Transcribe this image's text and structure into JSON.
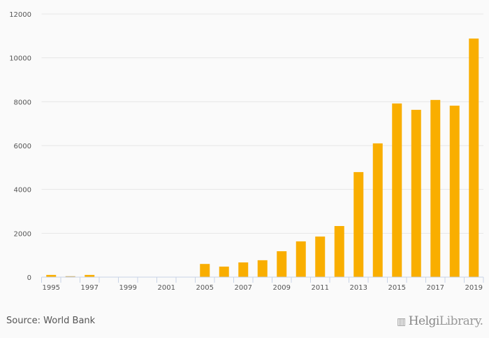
{
  "source": "Source: World Bank",
  "logo": {
    "text1": "Helgi",
    "text2": "Library."
  },
  "chart_data": {
    "type": "bar",
    "categories": [
      "1995",
      "1996",
      "1997",
      "1998",
      "1999",
      "2000",
      "2001",
      "2004",
      "2005",
      "2006",
      "2007",
      "2008",
      "2009",
      "2010",
      "2011",
      "2012",
      "2013",
      "2014",
      "2015",
      "2016",
      "2017",
      "2018",
      "2019"
    ],
    "tick_labels": [
      "1995",
      "",
      "1997",
      "",
      "1999",
      "",
      "2001",
      "",
      "2005",
      "",
      "2007",
      "",
      "2009",
      "",
      "2011",
      "",
      "2013",
      "",
      "2015",
      "",
      "2017",
      "",
      "2019"
    ],
    "values": [
      100,
      40,
      100,
      0,
      0,
      0,
      0,
      0,
      600,
      480,
      670,
      770,
      1180,
      1630,
      1850,
      2330,
      4790,
      6100,
      7920,
      7630,
      8080,
      7820,
      10880
    ],
    "ylim": [
      0,
      12000
    ],
    "yticks": [
      0,
      2000,
      4000,
      6000,
      8000,
      10000,
      12000
    ],
    "grid": true,
    "color": "#f9ae00",
    "title": "",
    "xlabel": "",
    "ylabel": ""
  }
}
